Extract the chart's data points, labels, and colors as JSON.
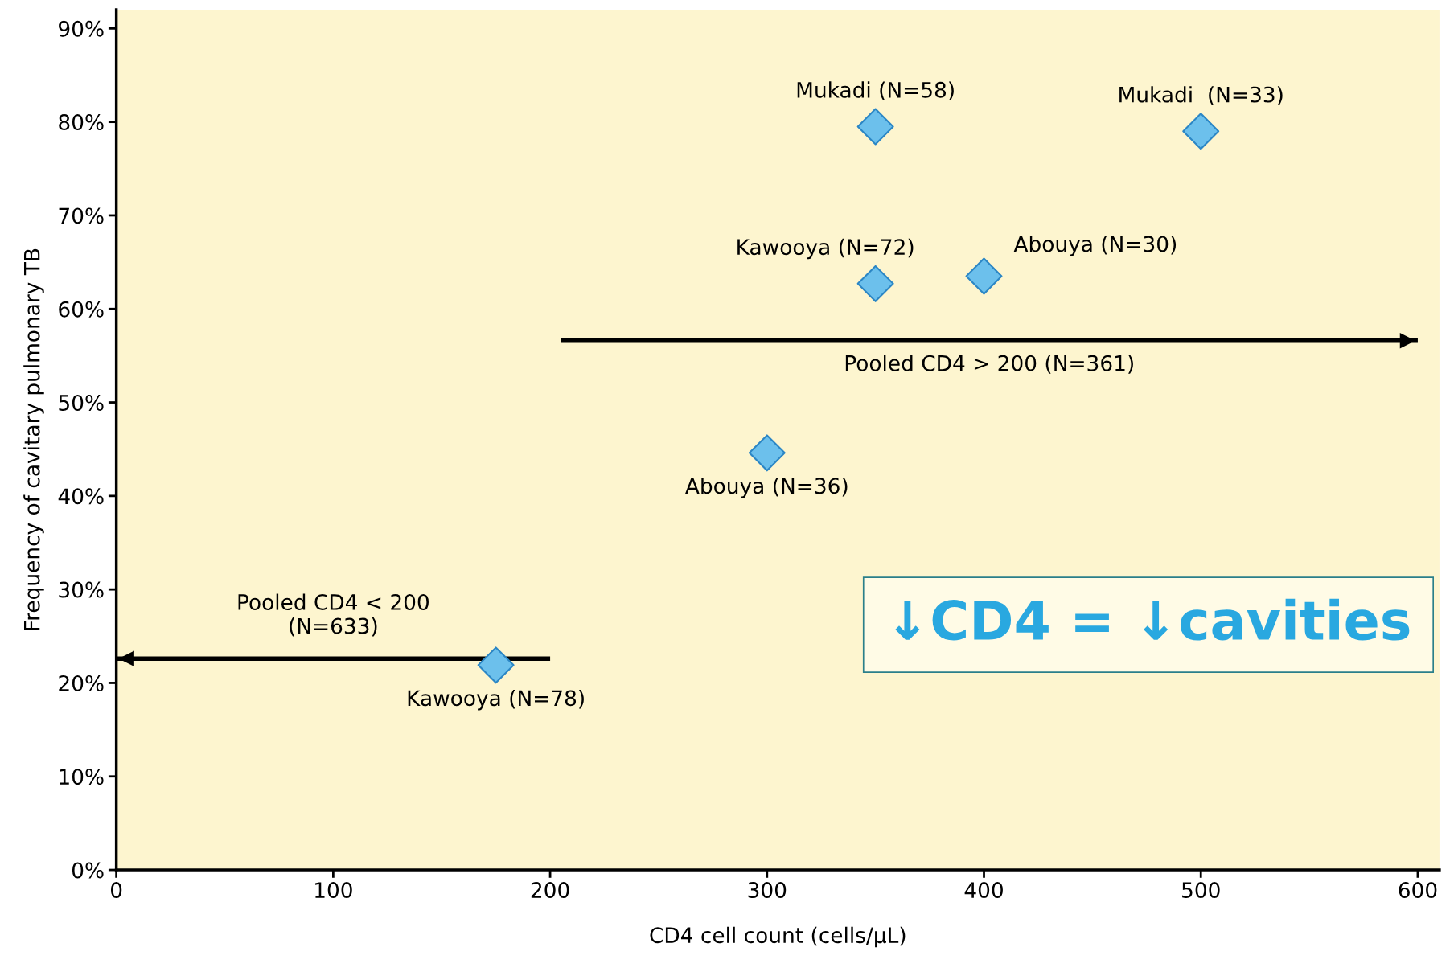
{
  "chart_data": {
    "type": "scatter",
    "xlabel": "CD4 cell count (cells/µL)",
    "ylabel": "Frequency of cavitary pulmonary TB",
    "x": [
      350,
      500,
      350,
      400,
      300,
      175
    ],
    "series": [
      {
        "color": "#6cc0ec",
        "marker": "diamond",
        "values": [
          79.5,
          79.0,
          62.7,
          63.5,
          44.6,
          21.9
        ]
      },
      {
        "type": "line",
        "name": "Pooled CD4 < 200\n(N=633)",
        "color": "#000000",
        "marker": "none",
        "x": [
          200,
          0
        ],
        "values": [
          22.6,
          22.6
        ]
      },
      {
        "type": "line",
        "name": "Pooled CD4 > 200 (N=361)",
        "color": "#000000",
        "marker": "none",
        "x": [
          205,
          600
        ],
        "values": [
          56.6,
          56.6
        ]
      }
    ],
    "xlim": [
      0,
      610
    ],
    "ylim": [
      0,
      92
    ],
    "xticks": [
      0,
      100,
      200,
      300,
      400,
      500,
      600
    ],
    "yticks": [
      {
        "value": 0,
        "label": "0%"
      },
      {
        "value": 10,
        "label": "10%"
      },
      {
        "value": 20,
        "label": "20%"
      },
      {
        "value": 30,
        "label": "30%"
      },
      {
        "value": 40,
        "label": "40%"
      },
      {
        "value": 50,
        "label": "50%"
      },
      {
        "value": 60,
        "label": "60%"
      },
      {
        "value": 70,
        "label": "70%"
      },
      {
        "value": 80,
        "label": "80%"
      },
      {
        "value": 90,
        "label": "90%"
      }
    ],
    "grid": false,
    "legend": false,
    "annotations": [
      {
        "text": "Mukadi (N=58)",
        "x": 350,
        "y": 79.5
      },
      {
        "text": "Mukadi  (N=33)",
        "x": 500,
        "y": 79.0
      },
      {
        "text": "Kawooya (N=72)",
        "x": 350,
        "y": 62.7
      },
      {
        "text": "Abouya (N=30)",
        "x": 400,
        "y": 63.5
      },
      {
        "text": "Abouya (N=36)",
        "x": 300,
        "y": 44.6
      },
      {
        "text": "Kawooya (N=78)",
        "x": 175,
        "y": 21.9
      },
      "↓CD4 = ↓cavities"
    ]
  }
}
